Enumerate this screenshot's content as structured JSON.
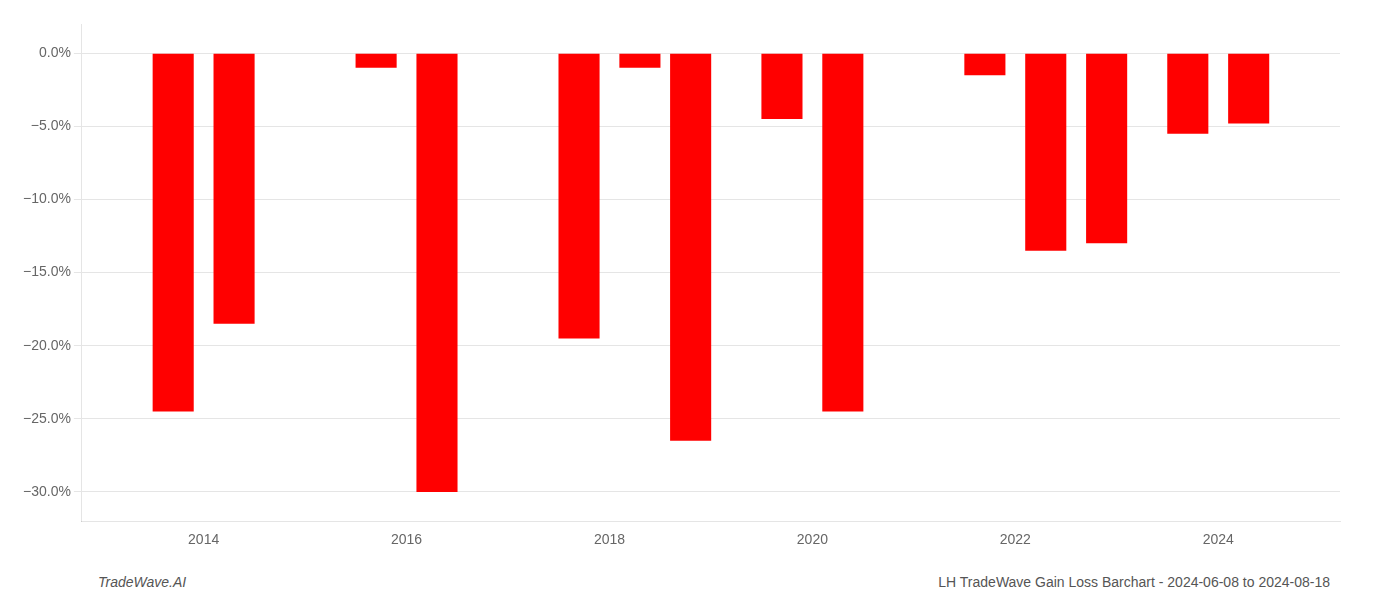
{
  "chart_data": {
    "type": "bar",
    "x": [
      2013.7,
      2014.3,
      2015.7,
      2016.3,
      2017.7,
      2018.3,
      2018.8,
      2019.7,
      2020.3,
      2021.7,
      2022.3,
      2022.9,
      2023.7,
      2024.3
    ],
    "values": [
      -24.5,
      -18.5,
      -1.0,
      -30.0,
      -19.5,
      -1.0,
      -26.5,
      -4.5,
      -24.5,
      -1.5,
      -13.5,
      -13.0,
      -5.5,
      -4.8
    ],
    "color": "#ff0000",
    "xlim": [
      2012.8,
      2025.2
    ],
    "xticks": [
      2014,
      2016,
      2018,
      2020,
      2022,
      2024
    ],
    "ylim": [
      -32,
      2
    ],
    "yticks": [
      {
        "value": 0,
        "label": "0.0%"
      },
      {
        "value": -5,
        "label": "−5.0%"
      },
      {
        "value": -10,
        "label": "−10.0%"
      },
      {
        "value": -15,
        "label": "−15.0%"
      },
      {
        "value": -20,
        "label": "−20.0%"
      },
      {
        "value": -25,
        "label": "−25.0%"
      },
      {
        "value": -30,
        "label": "−30.0%"
      }
    ],
    "grid": true,
    "annotations": [
      "TradeWave.AI",
      "LH TradeWave Gain Loss Barchart - 2024-06-08 to 2024-08-18"
    ]
  }
}
